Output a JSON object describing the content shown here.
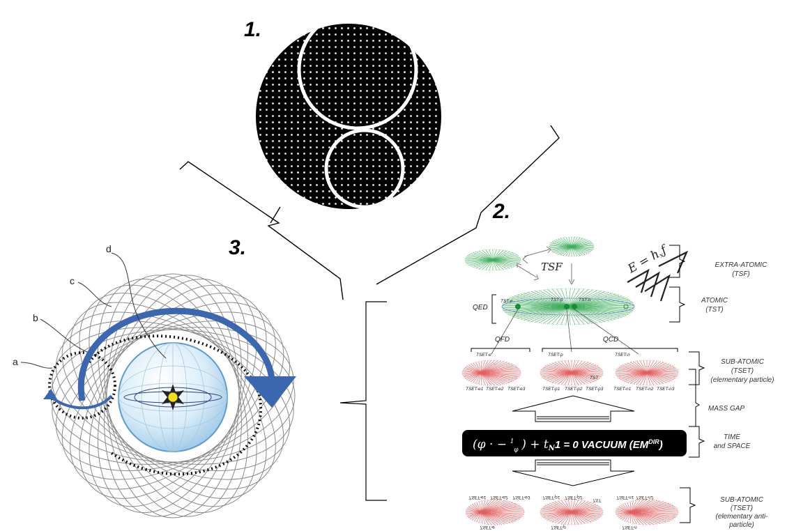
{
  "panels": {
    "p1": "1.",
    "p2": "2.",
    "p3": "3."
  },
  "orbit_labels": [
    "a",
    "b",
    "c",
    "d"
  ],
  "schema": {
    "tsf_label": "TSF",
    "energy_eq": "E = h",
    "energy_sub": "x",
    "energy_f": "f",
    "qed": "QED",
    "qfd": "QFD",
    "qcd": "QCD",
    "tst_e": "TST-e",
    "tst_p": "TST-p",
    "tst_n": "TST-n",
    "tset_e": "TSET-e",
    "tset_p": "TSET-p",
    "tset_n": "TSET-n",
    "tst_inner": "TST",
    "bottom_tset_e": [
      "TSET-e1",
      "TSET-e2",
      "TSET-e3"
    ],
    "bottom_tset_p": [
      "TSET-p1",
      "TSET-p2",
      "TSET-p3"
    ],
    "bottom_tset_n": [
      "TSET-n1",
      "TSET-n2",
      "TSET-n3"
    ],
    "formula_prefix": "(φ · −",
    "formula_frac_num": "1",
    "formula_frac_den": "φ",
    "formula_mid": ") + t",
    "formula_sub": "N",
    "formula_rest": "1 = 0 VACUUM (EM",
    "formula_sup": "DIR",
    "formula_end": ")"
  },
  "side_labels": {
    "extra_atomic": [
      "EXTRA-ATOMIC",
      "(TSF)"
    ],
    "atomic": [
      "ATOMIC",
      "(TST)"
    ],
    "sub_atomic": [
      "SUB-ATOMIC",
      "(TSET)",
      "(elementary particle)"
    ],
    "mass_gap": "MASS GAP",
    "time_space": [
      "TIME",
      "and SPACE"
    ],
    "sub_atomic_anti": [
      "SUB-ATOMIC",
      "(TSET)",
      "(elementary anti-",
      "particle)"
    ]
  },
  "colors": {
    "dotted_disc": "#000000",
    "orbit_blue": "#3a67b0",
    "green_field": "#3fae5c",
    "red_field": "#e06060",
    "formula_bg": "#000000"
  }
}
